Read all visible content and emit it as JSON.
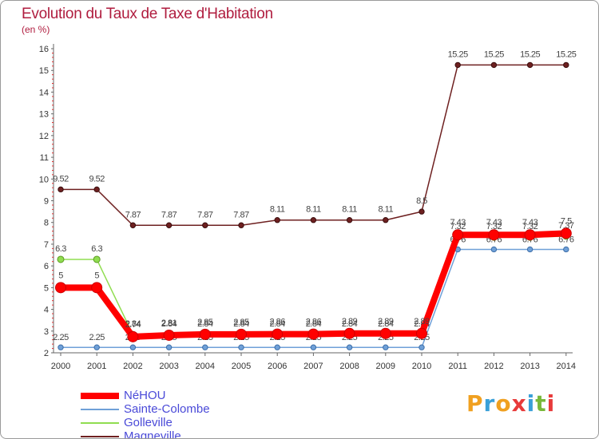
{
  "header": {
    "title": "Evolution du Taux de Taxe d'Habitation",
    "subtitle": "(en %)"
  },
  "logo": {
    "text": "Proxiti",
    "colors": [
      "#f0a020",
      "#3aa0d8",
      "#f0a020",
      "#e83a3a",
      "#3aa0d8",
      "#78b83a",
      "#e83a3a"
    ]
  },
  "chart_data": {
    "type": "line",
    "title": "Evolution du Taux de Taxe d'Habitation",
    "ylabel": "(en %)",
    "xlabel": "",
    "ylim": [
      2,
      16
    ],
    "yticks": [
      2,
      3,
      4,
      5,
      6,
      7,
      8,
      9,
      10,
      11,
      12,
      13,
      14,
      15,
      16
    ],
    "grid": false,
    "legend_position": "bottom-left",
    "x": [
      "2000",
      "2001",
      "2002",
      "2003",
      "2004",
      "2005",
      "2006",
      "2007",
      "2008",
      "2009",
      "2010",
      "2011",
      "2012",
      "2013",
      "2014"
    ],
    "series": [
      {
        "name": "Magneville",
        "color": "#6e2020",
        "values": [
          9.52,
          9.52,
          7.87,
          7.87,
          7.87,
          7.87,
          8.11,
          8.11,
          8.11,
          8.11,
          8.5,
          15.25,
          15.25,
          15.25,
          15.25
        ],
        "labels": [
          "9.52",
          "9.52",
          "7.87",
          "7.87",
          "7.87",
          "7.87",
          "8.11",
          "8.11",
          "8.11",
          "8.11",
          "8.5",
          "15.25",
          "15.25",
          "15.25",
          "15.25"
        ]
      },
      {
        "name": "Sainte-Colombe",
        "color": "#6fa0d8",
        "values": [
          2.25,
          2.25,
          2.25,
          2.25,
          2.25,
          2.25,
          2.25,
          2.25,
          2.25,
          2.25,
          2.25,
          6.76,
          6.76,
          6.76,
          6.76
        ],
        "labels": [
          "2.25",
          "2.25",
          "2.25",
          "2.25",
          "2.25",
          "2.25",
          "2.25",
          "2.25",
          "2.25",
          "2.25",
          "2.25",
          "6.76",
          "6.76",
          "6.76",
          "6.76"
        ]
      },
      {
        "name": "Golleville",
        "color": "#90dd50",
        "values": [
          6.3,
          6.3,
          2.84,
          2.84,
          2.84,
          2.84,
          2.84,
          2.84,
          2.84,
          2.84,
          2.84,
          7.32,
          7.32,
          7.32,
          7.37
        ],
        "labels": [
          "6.3",
          "6.3",
          "2.84",
          "2.84",
          "2.84",
          "2.84",
          "2.84",
          "2.84",
          "2.84",
          "2.84",
          "2.84",
          "7.32",
          "7.32",
          "7.32",
          "7.37"
        ]
      },
      {
        "name": "NéHOU",
        "color": "#ff0000",
        "values": [
          5,
          5,
          2.74,
          2.81,
          2.85,
          2.85,
          2.86,
          2.86,
          2.89,
          2.89,
          2.89,
          7.43,
          7.43,
          7.43,
          7.5
        ],
        "labels": [
          "5",
          "5",
          "2.74",
          "2.81",
          "2.85",
          "2.85",
          "2.86",
          "2.86",
          "2.89",
          "2.89",
          "2.89",
          "7.43",
          "7.43",
          "7.43",
          "7.5"
        ]
      }
    ]
  },
  "legend": {
    "items": [
      {
        "name": "NéHOU",
        "color": "#ff0000",
        "width": 8
      },
      {
        "name": "Sainte-Colombe",
        "color": "#6fa0d8",
        "width": 2
      },
      {
        "name": "Golleville",
        "color": "#90dd50",
        "width": 2
      },
      {
        "name": "Magneville",
        "color": "#6e2020",
        "width": 2
      }
    ]
  }
}
